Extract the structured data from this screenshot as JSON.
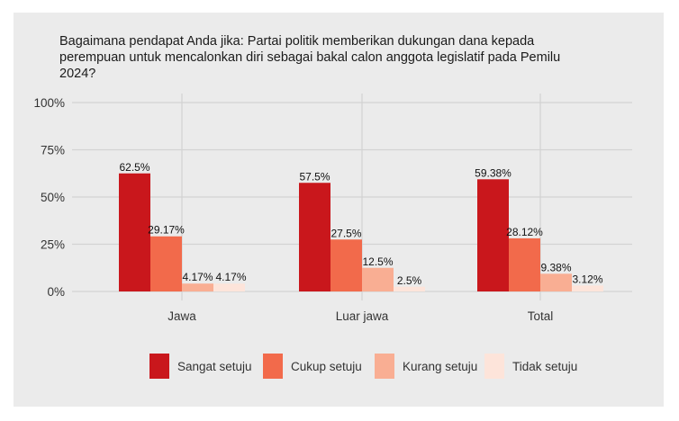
{
  "chart_data": {
    "type": "bar",
    "title": "Bagaimana pendapat Anda jika: Partai politik memberikan dukungan dana kepada perempuan untuk mencalonkan diri sebagai bakal calon anggota legislatif pada Pemilu 2024?",
    "categories": [
      "Jawa",
      "Luar jawa",
      "Total"
    ],
    "series": [
      {
        "name": "Sangat setuju",
        "color": "#c9171c",
        "values": [
          62.5,
          57.5,
          59.38
        ],
        "labels": [
          "62.5%",
          "57.5%",
          "59.38%"
        ]
      },
      {
        "name": "Cukup setuju",
        "color": "#f26a4b",
        "values": [
          29.17,
          27.5,
          28.12
        ],
        "labels": [
          "29.17%",
          "27.5%",
          "28.12%"
        ]
      },
      {
        "name": "Kurang setuju",
        "color": "#f9ae93",
        "values": [
          4.17,
          12.5,
          9.38
        ],
        "labels": [
          "4.17%",
          "12.5%",
          "9.38%"
        ]
      },
      {
        "name": "Tidak setuju",
        "color": "#fde4da",
        "values": [
          4.17,
          2.5,
          3.12
        ],
        "labels": [
          "4.17%",
          "2.5%",
          "3.12%"
        ]
      }
    ],
    "ylim": [
      0,
      100
    ],
    "yticks": [
      0,
      25,
      50,
      75,
      100
    ],
    "ytick_labels": [
      "0%",
      "25%",
      "50%",
      "75%",
      "100%"
    ],
    "xlabel": "",
    "ylabel": "",
    "grid": true,
    "legend": "bottom"
  }
}
